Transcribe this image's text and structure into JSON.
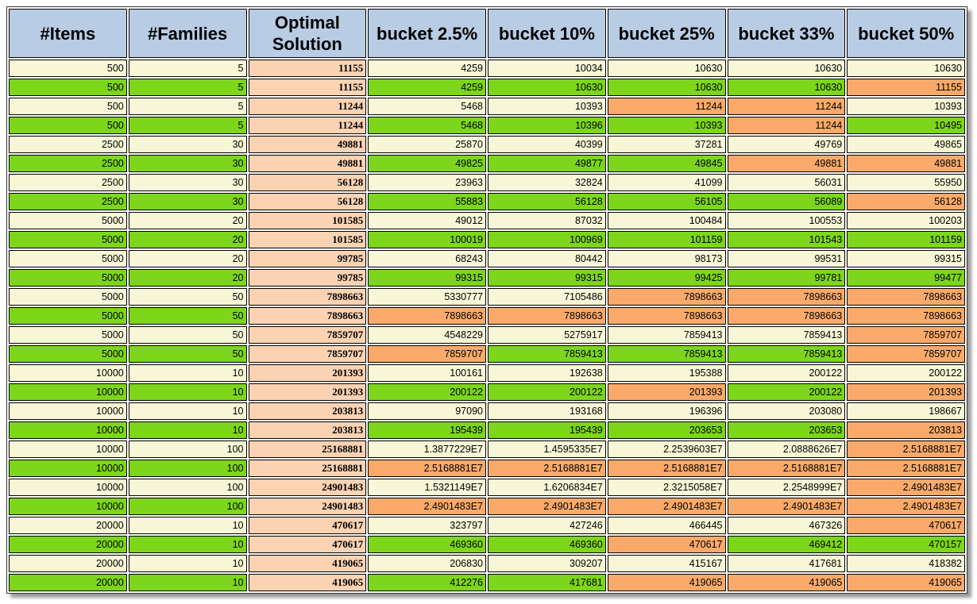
{
  "headers": [
    "#Items",
    "#Families",
    "Optimal Solution",
    "bucket 2.5%",
    "bucket 10%",
    "bucket 25%",
    "bucket 33%",
    "bucket 50%"
  ],
  "colors": {
    "white_row": "#f7f7d7",
    "green_row": "#7dd61b",
    "orange_highlight": "#f9aa6a",
    "optimal_column": "#fbd3b3",
    "header": "#b8cce4"
  },
  "rows": [
    {
      "style": "w",
      "cells": [
        "500",
        "5",
        "11155",
        "4259",
        "10034",
        "10630",
        "10630",
        "10630"
      ],
      "hi": []
    },
    {
      "style": "g",
      "cells": [
        "500",
        "5",
        "11155",
        "4259",
        "10630",
        "10630",
        "10630",
        "11155"
      ],
      "hi": [
        7
      ]
    },
    {
      "style": "w",
      "cells": [
        "500",
        "5",
        "11244",
        "5468",
        "10393",
        "11244",
        "11244",
        "10393"
      ],
      "hi": [
        5,
        6
      ]
    },
    {
      "style": "g",
      "cells": [
        "500",
        "5",
        "11244",
        "5468",
        "10396",
        "10393",
        "11244",
        "10495"
      ],
      "hi": [
        6
      ]
    },
    {
      "style": "w",
      "cells": [
        "2500",
        "30",
        "49881",
        "25870",
        "40399",
        "37281",
        "49769",
        "49865"
      ],
      "hi": []
    },
    {
      "style": "g",
      "cells": [
        "2500",
        "30",
        "49881",
        "49825",
        "49877",
        "49845",
        "49881",
        "49881"
      ],
      "hi": [
        6,
        7
      ]
    },
    {
      "style": "w",
      "cells": [
        "2500",
        "30",
        "56128",
        "23963",
        "32824",
        "41099",
        "56031",
        "55950"
      ],
      "hi": []
    },
    {
      "style": "g",
      "cells": [
        "2500",
        "30",
        "56128",
        "55883",
        "56128",
        "56105",
        "56089",
        "56128"
      ],
      "hi": [
        7
      ]
    },
    {
      "style": "w",
      "cells": [
        "5000",
        "20",
        "101585",
        "49012",
        "87032",
        "100484",
        "100553",
        "100203"
      ],
      "hi": []
    },
    {
      "style": "g",
      "cells": [
        "5000",
        "20",
        "101585",
        "100019",
        "100969",
        "101159",
        "101543",
        "101159"
      ],
      "hi": []
    },
    {
      "style": "w",
      "cells": [
        "5000",
        "20",
        "99785",
        "68243",
        "80442",
        "98173",
        "99531",
        "99315"
      ],
      "hi": []
    },
    {
      "style": "g",
      "cells": [
        "5000",
        "20",
        "99785",
        "99315",
        "99315",
        "99425",
        "99781",
        "99477"
      ],
      "hi": []
    },
    {
      "style": "w",
      "cells": [
        "5000",
        "50",
        "7898663",
        "5330777",
        "7105486",
        "7898663",
        "7898663",
        "7898663"
      ],
      "hi": [
        5,
        6,
        7
      ]
    },
    {
      "style": "g",
      "cells": [
        "5000",
        "50",
        "7898663",
        "7898663",
        "7898663",
        "7898663",
        "7898663",
        "7898663"
      ],
      "hi": [
        3,
        4,
        5,
        6,
        7
      ]
    },
    {
      "style": "w",
      "cells": [
        "5000",
        "50",
        "7859707",
        "4548229",
        "5275917",
        "7859413",
        "7859413",
        "7859707"
      ],
      "hi": [
        7
      ]
    },
    {
      "style": "g",
      "cells": [
        "5000",
        "50",
        "7859707",
        "7859707",
        "7859413",
        "7859413",
        "7859413",
        "7859707"
      ],
      "hi": [
        3,
        7
      ]
    },
    {
      "style": "w",
      "cells": [
        "10000",
        "10",
        "201393",
        "100161",
        "192638",
        "195388",
        "200122",
        "200122"
      ],
      "hi": []
    },
    {
      "style": "g",
      "cells": [
        "10000",
        "10",
        "201393",
        "200122",
        "200122",
        "201393",
        "200122",
        "201393"
      ],
      "hi": [
        5,
        7
      ]
    },
    {
      "style": "w",
      "cells": [
        "10000",
        "10",
        "203813",
        "97090",
        "193168",
        "196396",
        "203080",
        "198667"
      ],
      "hi": []
    },
    {
      "style": "g",
      "cells": [
        "10000",
        "10",
        "203813",
        "195439",
        "195439",
        "203653",
        "203653",
        "203813"
      ],
      "hi": [
        7
      ]
    },
    {
      "style": "w",
      "cells": [
        "10000",
        "100",
        "25168881",
        "1.3877229E7",
        "1.4595335E7",
        "2.2539603E7",
        "2.0888626E7",
        "2.5168881E7"
      ],
      "hi": [
        7
      ]
    },
    {
      "style": "g",
      "cells": [
        "10000",
        "100",
        "25168881",
        "2.5168881E7",
        "2.5168881E7",
        "2.5168881E7",
        "2.5168881E7",
        "2.5168881E7"
      ],
      "hi": [
        3,
        4,
        5,
        6,
        7
      ]
    },
    {
      "style": "w",
      "cells": [
        "10000",
        "100",
        "24901483",
        "1.5321149E7",
        "1.6206834E7",
        "2.3215058E7",
        "2.2548999E7",
        "2.4901483E7"
      ],
      "hi": [
        7
      ]
    },
    {
      "style": "g",
      "cells": [
        "10000",
        "100",
        "24901483",
        "2.4901483E7",
        "2.4901483E7",
        "2.4901483E7",
        "2.4901483E7",
        "2.4901483E7"
      ],
      "hi": [
        3,
        4,
        5,
        6,
        7
      ]
    },
    {
      "style": "w",
      "cells": [
        "20000",
        "10",
        "470617",
        "323797",
        "427246",
        "466445",
        "467326",
        "470617"
      ],
      "hi": [
        7
      ]
    },
    {
      "style": "g",
      "cells": [
        "20000",
        "10",
        "470617",
        "469360",
        "469360",
        "470617",
        "469412",
        "470157"
      ],
      "hi": [
        5
      ]
    },
    {
      "style": "w",
      "cells": [
        "20000",
        "10",
        "419065",
        "206830",
        "309207",
        "415167",
        "417681",
        "418382"
      ],
      "hi": []
    },
    {
      "style": "g",
      "cells": [
        "20000",
        "10",
        "419065",
        "412276",
        "417681",
        "419065",
        "419065",
        "419065"
      ],
      "hi": [
        5,
        6,
        7
      ]
    }
  ]
}
